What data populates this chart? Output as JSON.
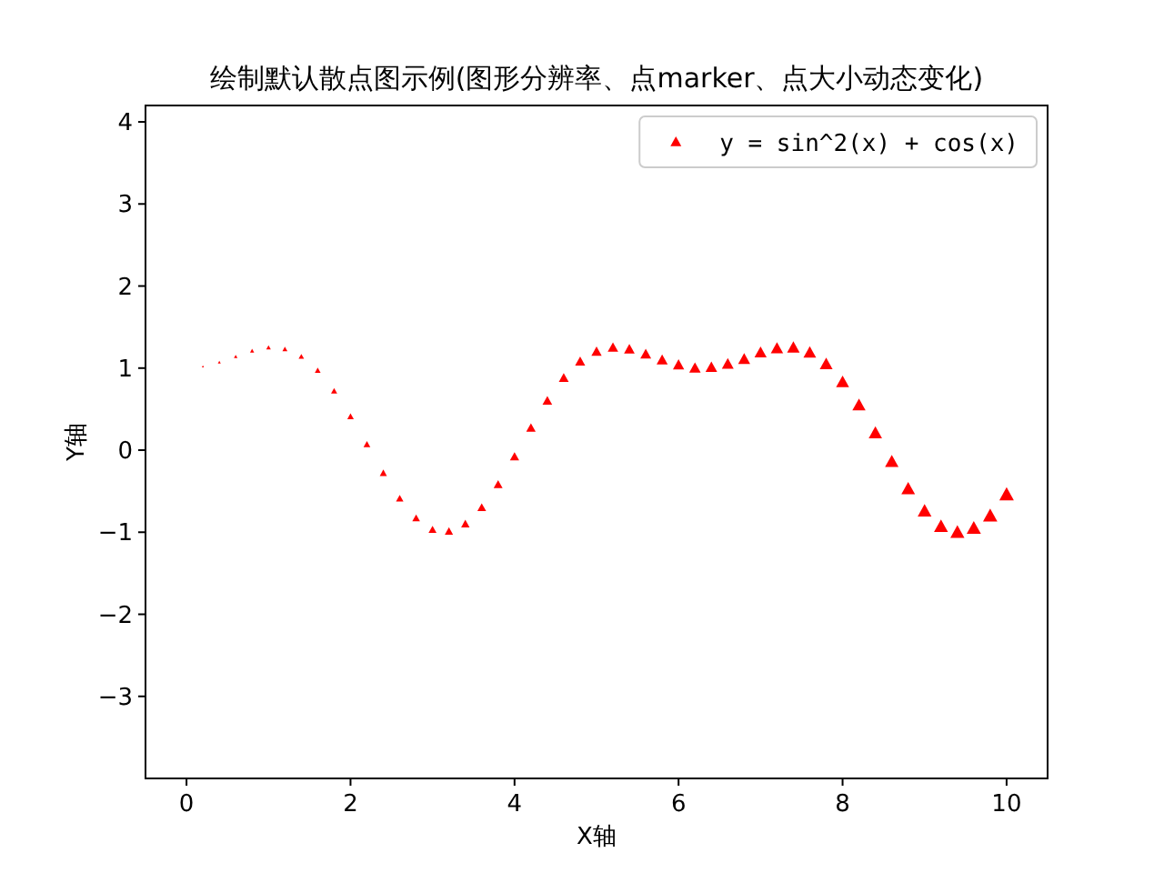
{
  "chart_data": {
    "type": "bubble",
    "title": "绘制默认散点图示例(图形分辨率、点marker、点大小动态变化)",
    "xlabel": "X轴",
    "ylabel": "Y轴",
    "x": [
      0.2,
      0.4,
      0.6,
      0.8,
      1.0,
      1.2,
      1.4,
      1.6,
      1.8,
      2.0,
      2.2,
      2.4,
      2.6,
      2.8,
      3.0,
      3.2,
      3.4,
      3.6,
      3.8,
      4.0,
      4.2,
      4.4,
      4.6,
      4.8,
      5.0,
      5.2,
      5.4,
      5.6,
      5.8,
      6.0,
      6.2,
      6.4,
      6.6,
      6.8,
      7.0,
      7.2,
      7.4,
      7.6,
      7.8,
      8.0,
      8.2,
      8.4,
      8.6,
      8.8,
      9.0,
      9.2,
      9.4,
      9.6,
      9.8,
      10.0
    ],
    "series": [
      {
        "name": "y = sin^2(x) + cos(x)",
        "color": "#ff0000",
        "values": [
          1.02,
          1.07,
          1.14,
          1.21,
          1.25,
          1.23,
          1.14,
          0.97,
          0.72,
          0.41,
          0.07,
          -0.28,
          -0.59,
          -0.83,
          -0.97,
          -0.99,
          -0.9,
          -0.7,
          -0.42,
          -0.08,
          0.27,
          0.6,
          0.88,
          1.08,
          1.2,
          1.25,
          1.23,
          1.17,
          1.1,
          1.04,
          1.0,
          1.01,
          1.05,
          1.11,
          1.19,
          1.24,
          1.25,
          1.19,
          1.05,
          0.83,
          0.55,
          0.21,
          -0.14,
          -0.47,
          -0.74,
          -0.93,
          -1.0,
          -0.95,
          -0.8,
          -0.54
        ],
        "sizes": [
          0.02,
          0.04,
          0.06,
          0.08,
          0.1,
          0.12,
          0.14,
          0.16,
          0.18,
          0.2,
          0.22,
          0.24,
          0.26,
          0.28,
          0.3,
          0.32,
          0.34,
          0.36,
          0.38,
          0.4,
          0.42,
          0.44,
          0.46,
          0.48,
          0.5,
          0.52,
          0.54,
          0.56,
          0.58,
          0.6,
          0.62,
          0.64,
          0.66,
          0.68,
          0.7,
          0.72,
          0.74,
          0.76,
          0.78,
          0.8,
          0.82,
          0.84,
          0.86,
          0.88,
          0.9,
          0.92,
          0.94,
          0.96,
          0.98,
          1.0
        ]
      }
    ],
    "xlim": [
      -0.5,
      10.5
    ],
    "ylim": [
      -4,
      4.2
    ],
    "xticks": [
      0,
      2,
      4,
      6,
      8,
      10
    ],
    "yticks": [
      {
        "value": -3,
        "label": "−3"
      },
      {
        "value": -2,
        "label": "−2"
      },
      {
        "value": -1,
        "label": "−1"
      },
      0,
      1,
      2,
      3,
      4
    ],
    "marker": "triangle",
    "legend": "top right"
  }
}
